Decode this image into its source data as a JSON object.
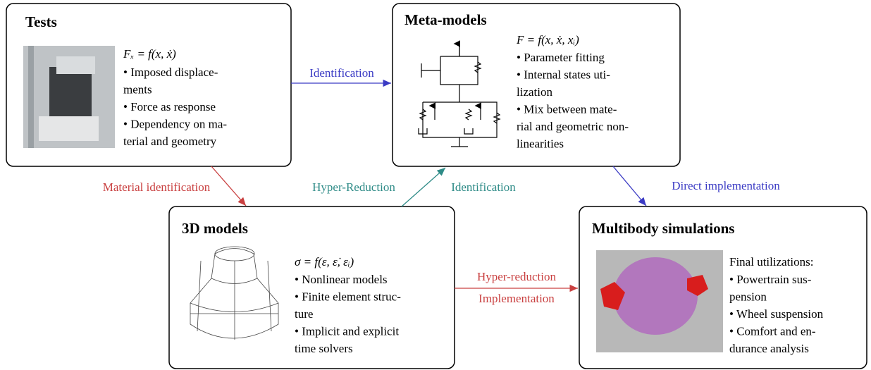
{
  "nodes": [
    {
      "title": "Tests",
      "formula": "Fₓ = f(x, ẋ)",
      "lines": [
        "• Imposed displace-",
        "ments",
        "• Force as response",
        "• Dependency on ma-",
        "terial and geometry"
      ]
    },
    {
      "title": "Meta-models",
      "formula": "F = f(x, ẋ, xᵢ)",
      "lines": [
        "• Parameter fitting",
        "• Internal states uti-",
        "lization",
        "• Mix between mate-",
        "rial and geometric non-",
        "linearities"
      ]
    },
    {
      "title": "3D models",
      "formula": "σ = f(ε, ε̇, εᵢ)",
      "lines": [
        "• Nonlinear models",
        "• Finite element struc-",
        "ture",
        "• Implicit and explicit",
        "time solvers"
      ]
    },
    {
      "title": "Multibody simulations",
      "formula": "Final utilizations:",
      "lines": [
        "• Powertrain sus-",
        "pension",
        "• Wheel suspension",
        "• Comfort and en-",
        "durance analysis"
      ]
    }
  ],
  "edges": [
    {
      "label": "Identification"
    },
    {
      "label": "Material identification"
    },
    {
      "label": "Hyper-Reduction"
    },
    {
      "label": "Identification"
    },
    {
      "label": "Direct implementation"
    },
    {
      "label": "Hyper-reduction"
    },
    {
      "label": "Implementation"
    }
  ]
}
